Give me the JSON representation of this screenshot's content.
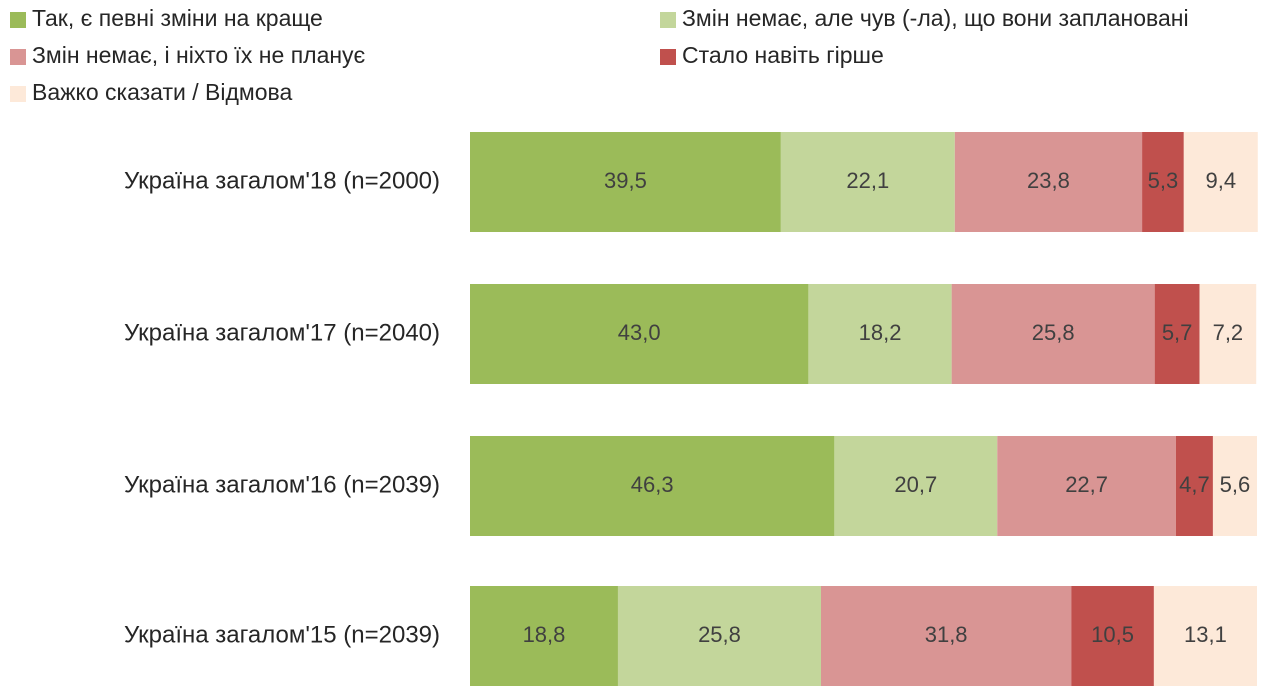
{
  "chart_data": {
    "type": "stacked-bar-horizontal",
    "categories": [
      "Україна загалом'18 (n=2000)",
      "Україна загалом'17 (n=2040)",
      "Україна загалом'16 (n=2039)",
      "Україна загалом'15 (n=2039)"
    ],
    "xlim": [
      0,
      100
    ],
    "legend": "top",
    "series": [
      {
        "name": "Так, є певні зміни на краще",
        "color": "#9bbb59",
        "values": [
          39.5,
          43.0,
          46.3,
          18.8
        ],
        "value_labels": [
          "39,5",
          "43,0",
          "46,3",
          "18,8"
        ]
      },
      {
        "name": "Змін немає, але чув (-ла), що вони заплановані",
        "color": "#c3d69b",
        "values": [
          22.1,
          18.2,
          20.7,
          25.8
        ],
        "value_labels": [
          "22,1",
          "18,2",
          "20,7",
          "25,8"
        ]
      },
      {
        "name": "Змін немає, і ніхто їх не планує",
        "color": "#d99594",
        "values": [
          23.8,
          25.8,
          22.7,
          31.8
        ],
        "value_labels": [
          "23,8",
          "25,8",
          "22,7",
          "31,8"
        ]
      },
      {
        "name": "Стало навіть гірше",
        "color": "#c0504d",
        "values": [
          5.3,
          5.7,
          4.7,
          10.5
        ],
        "value_labels": [
          "5,3",
          "5,7",
          "4,7",
          "10,5"
        ]
      },
      {
        "name": "Важко сказати / Відмова",
        "color": "#fde9d9",
        "values": [
          9.4,
          7.2,
          5.6,
          13.1
        ],
        "value_labels": [
          "9,4",
          "7,2",
          "5,6",
          "13,1"
        ]
      }
    ]
  }
}
